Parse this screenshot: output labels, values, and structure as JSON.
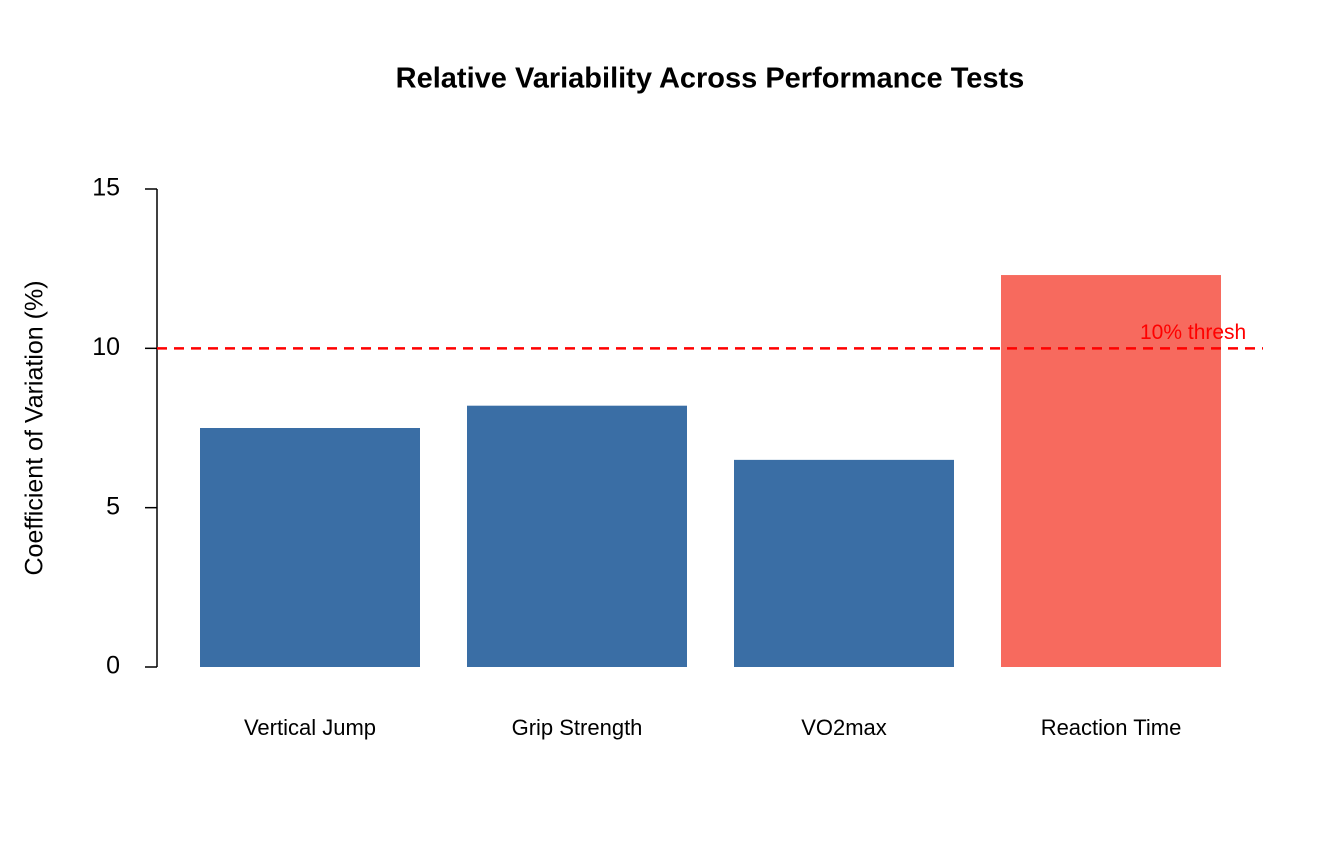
{
  "chart_data": {
    "type": "bar",
    "title": "Relative Variability Across Performance Tests",
    "y_label": "Coefficient of Variation (%)",
    "categories": [
      "Vertical Jump",
      "Grip Strength",
      "VO2max",
      "Reaction Time"
    ],
    "values": [
      7.5,
      8.2,
      6.5,
      12.3
    ],
    "colors": [
      "#3a6ea5",
      "#3a6ea5",
      "#3a6ea5",
      "#f76a5e"
    ],
    "ylim": [
      0,
      15
    ],
    "yticks": [
      0,
      5,
      10,
      15
    ],
    "threshold": {
      "value": 10,
      "label": "10% thresh",
      "color": "#ff0000"
    }
  }
}
